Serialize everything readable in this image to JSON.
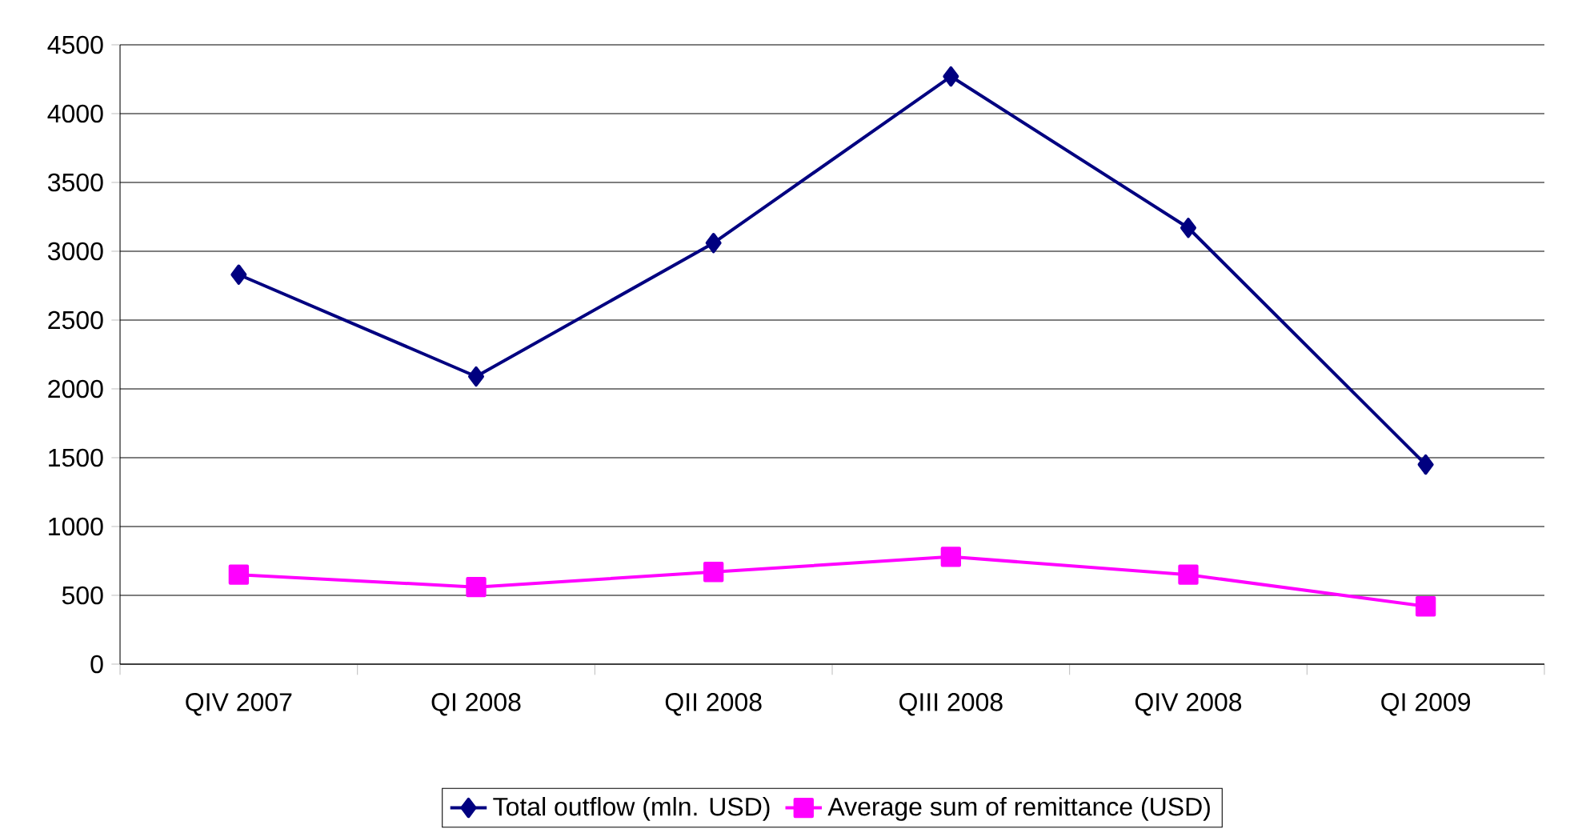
{
  "chart_data": {
    "type": "line",
    "categories": [
      "QIV 2007",
      "QI 2008",
      "QII 2008",
      "QIII 2008",
      "QIV 2008",
      "QI 2009"
    ],
    "series": [
      {
        "name": "Total outflow (mln. USD)",
        "color": "#000080",
        "marker": "diamond",
        "values": [
          2830,
          2090,
          3060,
          4270,
          3170,
          1450
        ]
      },
      {
        "name": "Average sum of remittance (USD)",
        "color": "#ff00ff",
        "marker": "square",
        "values": [
          650,
          560,
          670,
          780,
          650,
          420
        ]
      }
    ],
    "ylim": [
      0,
      4500
    ],
    "yticks": [
      0,
      500,
      1000,
      1500,
      2000,
      2500,
      3000,
      3500,
      4000,
      4500
    ],
    "grid": "y",
    "legend": "bottom"
  }
}
